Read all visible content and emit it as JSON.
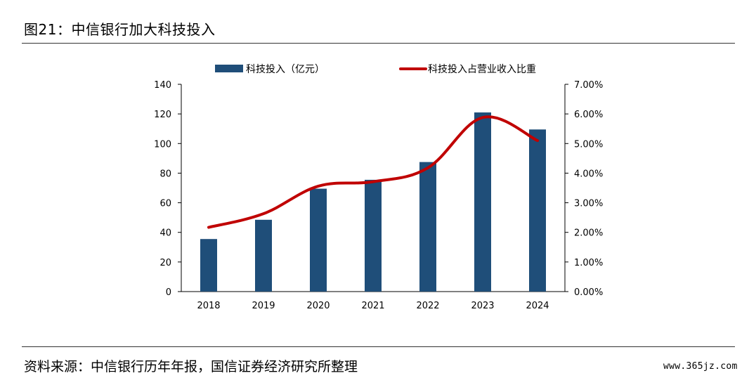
{
  "figure": {
    "title": "图21：中信银行加大科技投入",
    "source": "资料来源：中信银行历年年报，国信证券经济研究所整理",
    "watermark": "www.365jz.com"
  },
  "chart_data": {
    "type": "bar",
    "categories": [
      "2018",
      "2019",
      "2020",
      "2021",
      "2022",
      "2023",
      "2024"
    ],
    "series": [
      {
        "name": "科技投入（亿元）",
        "type": "bar",
        "axis": "left",
        "color": "#1f4e79",
        "values": [
          35.5,
          48.5,
          69.5,
          75.5,
          87.5,
          121,
          109.5
        ]
      },
      {
        "name": "科技投入占营业收入比重",
        "type": "line",
        "axis": "right",
        "color": "#c00000",
        "values": [
          2.17,
          2.63,
          3.56,
          3.71,
          4.18,
          5.88,
          5.1
        ]
      }
    ],
    "y_left": {
      "ylim": [
        0,
        140
      ],
      "ticks": [
        "0",
        "20",
        "40",
        "60",
        "80",
        "100",
        "120",
        "140"
      ]
    },
    "y_right": {
      "ylim": [
        0,
        7
      ],
      "ticks": [
        "0.00%",
        "1.00%",
        "2.00%",
        "3.00%",
        "4.00%",
        "5.00%",
        "6.00%",
        "7.00%"
      ]
    },
    "grid": false,
    "legend_position": "top"
  }
}
